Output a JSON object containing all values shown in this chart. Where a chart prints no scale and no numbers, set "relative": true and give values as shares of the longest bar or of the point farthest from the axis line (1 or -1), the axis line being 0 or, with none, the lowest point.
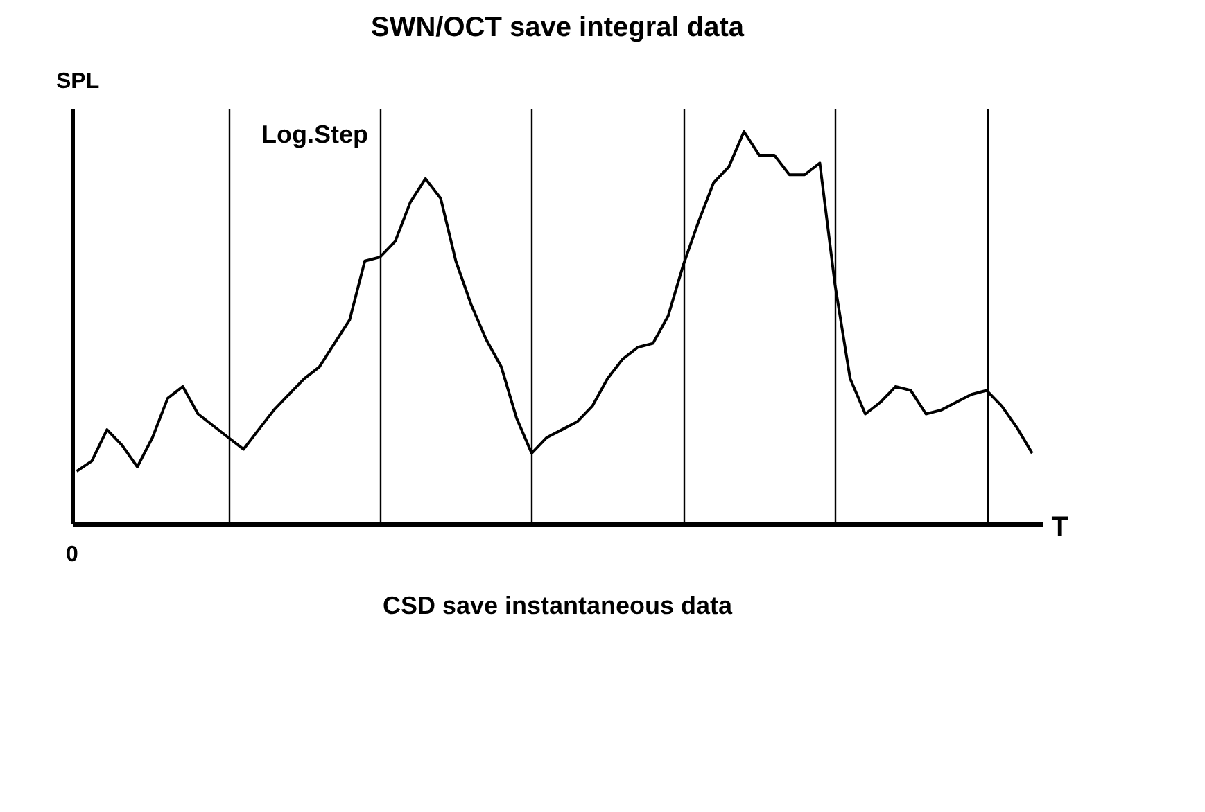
{
  "chart_data": {
    "type": "line",
    "relative": true,
    "title": "SWN/OCT save integral data",
    "xlabel": "T",
    "ylabel": "SPL",
    "annotations": [
      "Log.Step",
      "CSD save instantaneous data",
      "0"
    ],
    "grid": "x",
    "marker": "none",
    "line_style": "solid",
    "categories": [
      null,
      null,
      null,
      null,
      null,
      null,
      null,
      null,
      null,
      null,
      null,
      null,
      null,
      null,
      null,
      null,
      null,
      null,
      null,
      null,
      null,
      null,
      null,
      null,
      null,
      null,
      null,
      null,
      null,
      null,
      null,
      null,
      null,
      null,
      null,
      null,
      null,
      null,
      null,
      null,
      null,
      null,
      null,
      null,
      null,
      null,
      null,
      null,
      null,
      null,
      null,
      null,
      null,
      null,
      null,
      null,
      null,
      null,
      null,
      null,
      null,
      null,
      null,
      null
    ],
    "series": [
      {
        "color": "#000000",
        "values": [
          0.134,
          0.16,
          0.24,
          0.2,
          0.145,
          0.22,
          0.32,
          0.35,
          0.28,
          0.25,
          0.22,
          0.19,
          0.24,
          0.29,
          0.33,
          0.37,
          0.4,
          0.46,
          0.52,
          0.67,
          0.68,
          0.72,
          0.82,
          0.88,
          0.83,
          0.67,
          0.56,
          0.47,
          0.4,
          0.27,
          0.18,
          0.22,
          0.24,
          0.26,
          0.3,
          0.37,
          0.42,
          0.45,
          0.46,
          0.53,
          0.66,
          0.77,
          0.87,
          0.91,
          1.0,
          0.94,
          0.94,
          0.89,
          0.89,
          0.92,
          0.61,
          0.37,
          0.28,
          0.31,
          0.35,
          0.34,
          0.28,
          0.29,
          0.31,
          0.33,
          0.34,
          0.3,
          0.245,
          0.18
        ]
      }
    ]
  }
}
